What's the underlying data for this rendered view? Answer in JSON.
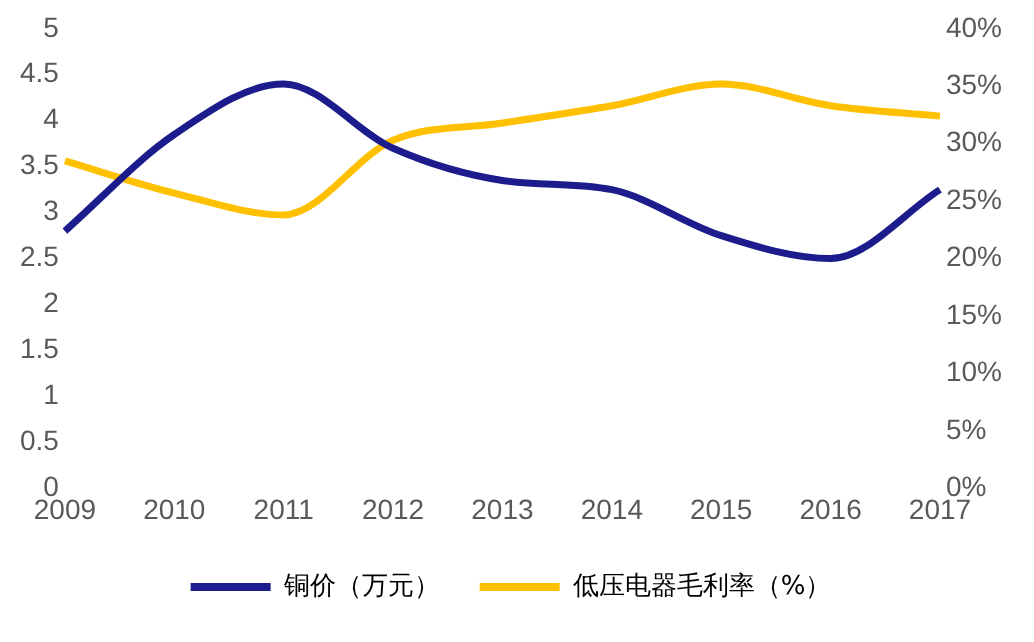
{
  "chart_data": {
    "type": "line",
    "categories": [
      "2009",
      "2010",
      "2011",
      "2012",
      "2013",
      "2014",
      "2015",
      "2016",
      "2017"
    ],
    "series": [
      {
        "name": "铜价（万元）",
        "color": "#1c1c8c",
        "values": [
          2.8,
          3.85,
          4.4,
          3.7,
          3.35,
          3.25,
          2.75,
          2.5,
          3.25
        ]
      },
      {
        "name": "低压电器毛利率（%）",
        "color": "#ffc000",
        "axis": "y2",
        "values": [
          28.5,
          25.7,
          23.8,
          30.3,
          31.8,
          33.3,
          35.2,
          33.3,
          32.4
        ]
      }
    ],
    "ylim": [
      0,
      5
    ],
    "yticks": [
      0,
      0.5,
      1,
      1.5,
      2,
      2.5,
      3,
      3.5,
      4,
      4.5,
      5
    ],
    "y2lim": [
      0,
      40
    ],
    "y2ticks": [
      {
        "value": 0,
        "label": "0%"
      },
      {
        "value": 5,
        "label": "5%"
      },
      {
        "value": 10,
        "label": "10%"
      },
      {
        "value": 15,
        "label": "15%"
      },
      {
        "value": 20,
        "label": "20%"
      },
      {
        "value": 25,
        "label": "25%"
      },
      {
        "value": 30,
        "label": "30%"
      },
      {
        "value": 35,
        "label": "35%"
      },
      {
        "value": 40,
        "label": "40%"
      }
    ],
    "grid": false,
    "legend": "bottom",
    "marker": "none",
    "line_style": "solid"
  }
}
